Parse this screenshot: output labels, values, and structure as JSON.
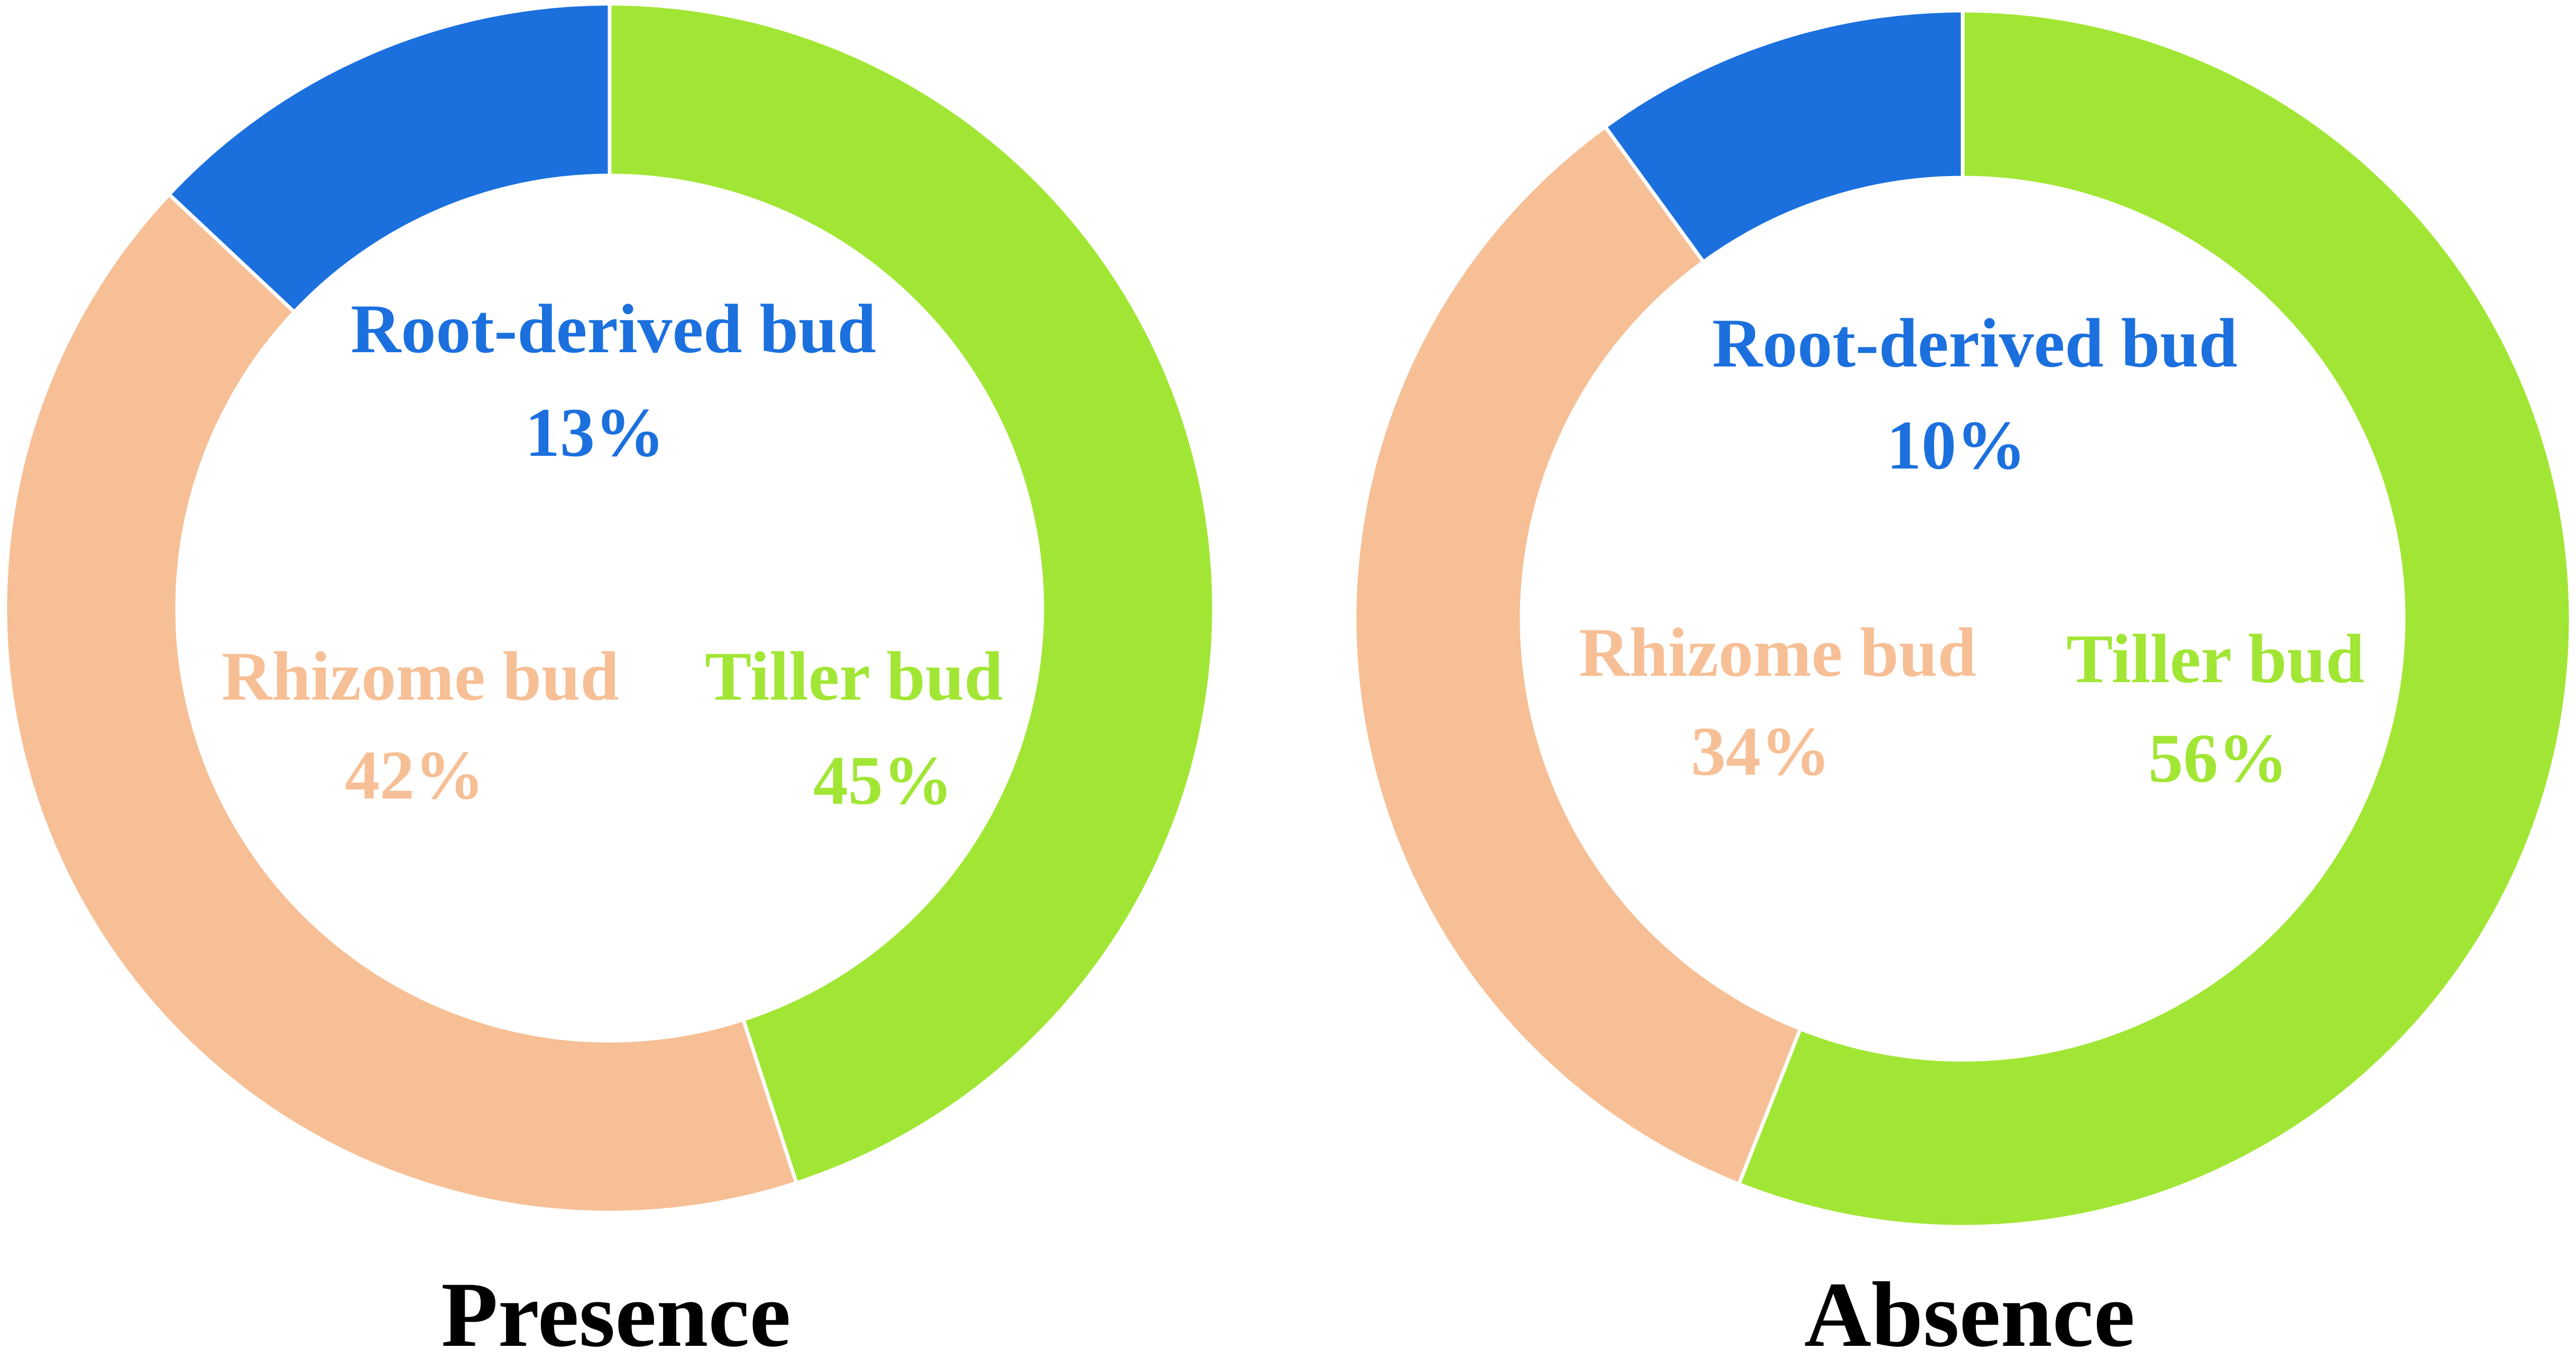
{
  "chart_data": [
    {
      "type": "pie",
      "title": "Presence",
      "slices": [
        {
          "label": "Tiller bud",
          "value": 45,
          "value_label": "45%",
          "color": "#a2e635"
        },
        {
          "label": "Rhizome bud",
          "value": 42,
          "value_label": "42%",
          "color": "#f7bf95"
        },
        {
          "label": "Root-derived bud",
          "value": 13,
          "value_label": "13%",
          "color": "#1b70de"
        }
      ]
    },
    {
      "type": "pie",
      "title": "Absence",
      "slices": [
        {
          "label": "Tiller bud",
          "value": 56,
          "value_label": "56%",
          "color": "#a2e635"
        },
        {
          "label": "Rhizome bud",
          "value": 34,
          "value_label": "34%",
          "color": "#f7bf95"
        },
        {
          "label": "Root-derived bud",
          "value": 10,
          "value_label": "10%",
          "color": "#1b70de"
        }
      ]
    }
  ]
}
